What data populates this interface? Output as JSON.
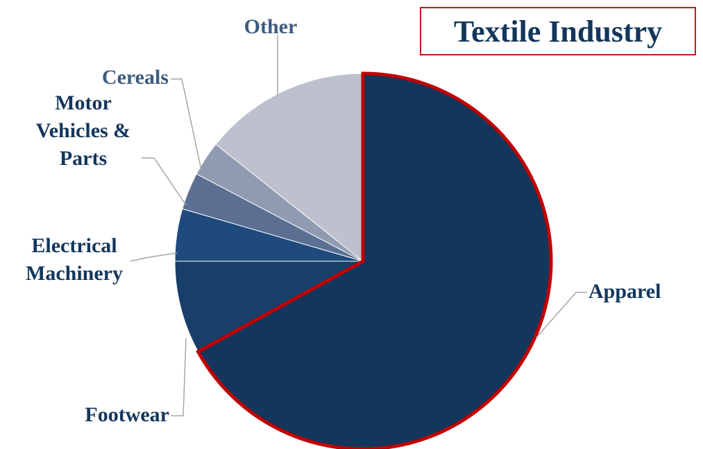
{
  "chart_data": {
    "type": "pie",
    "title": "Textile Industry",
    "categories": [
      "Apparel",
      "Footwear",
      "Electrical Machinery",
      "Motor Vehicles & Parts",
      "Cereals",
      "Other"
    ],
    "values": [
      67,
      8,
      4.5,
      3.2,
      3,
      14.3
    ],
    "label_lines": [
      [
        "Apparel"
      ],
      [
        "Footwear"
      ],
      [
        "Electrical",
        "Machinery"
      ],
      [
        "Motor",
        "Vehicles &",
        "Parts"
      ],
      [
        "Cereals"
      ],
      [
        "Other"
      ]
    ],
    "colors": [
      "#13365c",
      "#173f69",
      "#1e4a7d",
      "#5b6f92",
      "#8f9bb0",
      "#bcc1cd"
    ],
    "highlight": {
      "category": "Apparel",
      "outline_color": "#c00000"
    },
    "start": "12 o'clock",
    "direction": "clockwise",
    "legend": "none"
  }
}
